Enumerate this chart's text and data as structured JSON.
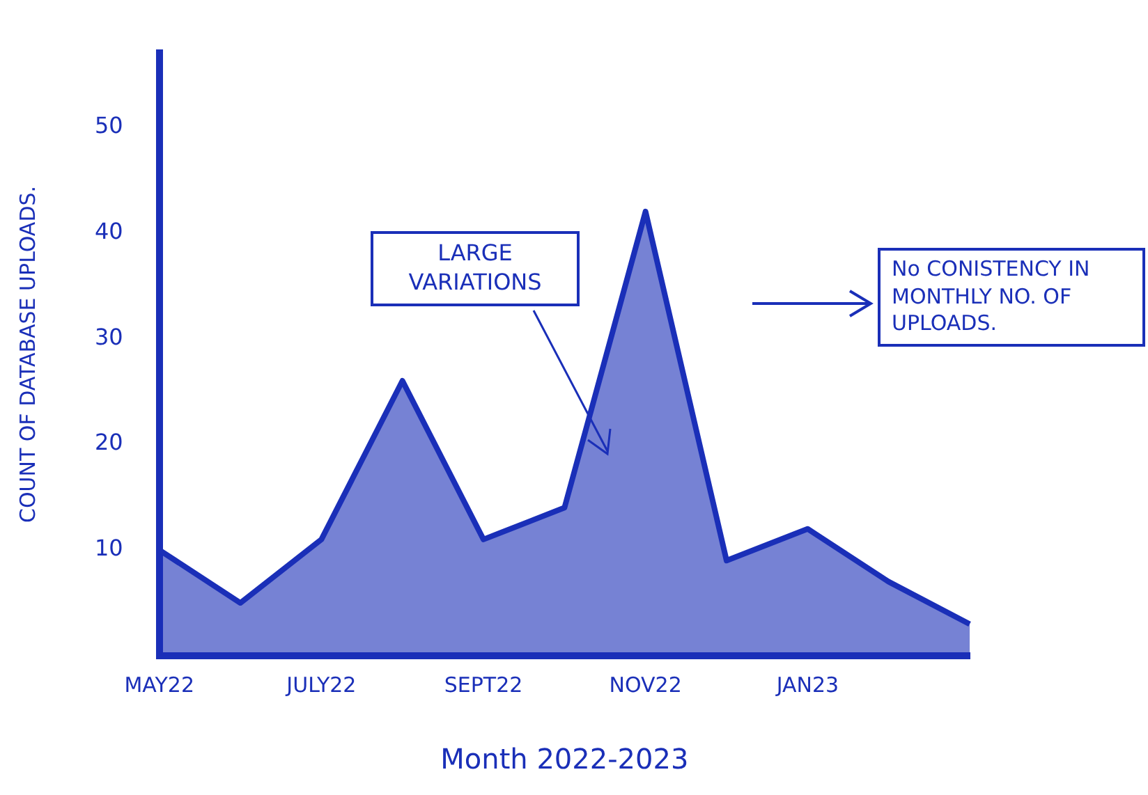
{
  "chart_data": {
    "type": "area",
    "xlabel": "Month 2022-2023",
    "ylabel": "COUNT OF DATABASE UPLOADS.",
    "categories": [
      "MAY22",
      null,
      "JULY22",
      null,
      "SEPT22",
      null,
      "NOV22",
      null,
      "JAN23",
      null,
      null
    ],
    "series": [
      {
        "color": "#1a2fb8",
        "values": [
          10,
          5,
          11,
          26,
          11,
          14,
          42,
          9,
          12,
          7,
          3
        ]
      }
    ],
    "ylim": [
      0,
      57
    ],
    "yticks": [
      10,
      20,
      30,
      40,
      50
    ],
    "grid": false,
    "legend": false,
    "marker": "none",
    "annotations": [
      "LARGE VARIATIONS",
      "No CONISTENCY IN MONTHLY NO. OF UPLOADS."
    ]
  }
}
